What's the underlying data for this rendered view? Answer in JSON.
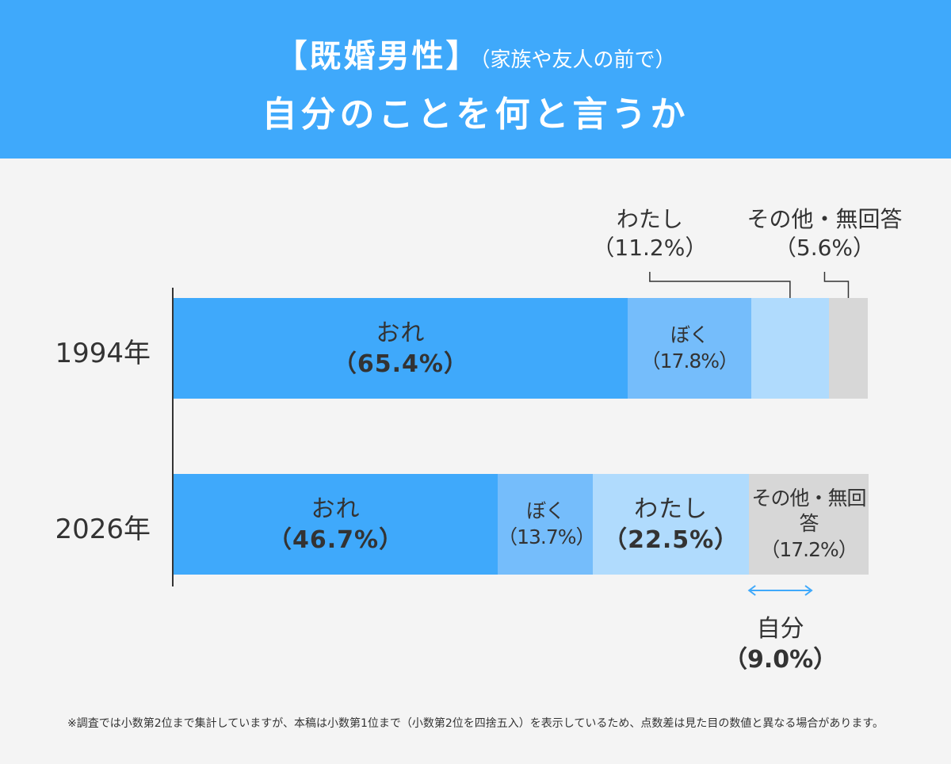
{
  "chart_data": {
    "type": "stacked_bar_horizontal",
    "title_prefix": "【既婚男性】",
    "subtitle": "（家族や友人の前で）",
    "title": "自分のことを何と言うか",
    "categories": [
      "1994年",
      "2026年"
    ],
    "xlim": [
      0,
      100
    ],
    "series": [
      {
        "name": "おれ",
        "color": "#3fa9fb",
        "values": [
          65.4,
          46.7
        ],
        "value_labels": [
          "（65.4%）",
          "（46.7%）"
        ]
      },
      {
        "name": "ぼく",
        "color": "#75bdfb",
        "values": [
          17.8,
          13.7
        ],
        "value_labels": [
          "（17.8%）",
          "（13.7%）"
        ]
      },
      {
        "name": "わたし",
        "color": "#b0dbfd",
        "values": [
          11.2,
          22.5
        ],
        "value_labels": [
          "（11.2%）",
          "（22.5%）"
        ]
      },
      {
        "name": "その他・無回答",
        "color": "#d7d7d7",
        "values": [
          5.6,
          17.2
        ],
        "value_labels": [
          "（5.6%）",
          "（17.2%）"
        ]
      }
    ],
    "annotation": {
      "text": "自分",
      "value": 9.0,
      "value_label": "（9.0%）"
    },
    "footnote": "※調査では小数第2位まで集計していますが、本稿は小数第1位まで（小数第2位を四捨五入）を表示しているため、点数差は見た目の数値と異なる場合があります。"
  }
}
